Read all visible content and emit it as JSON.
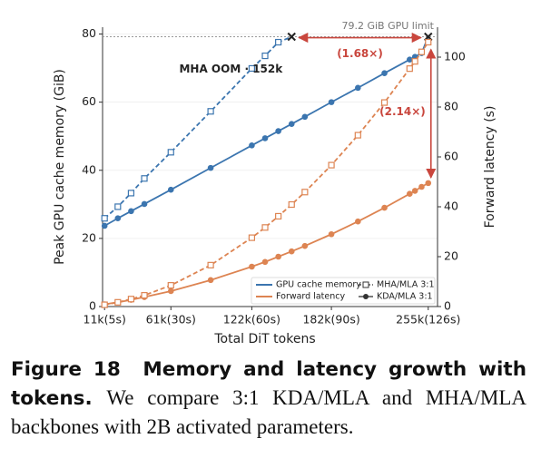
{
  "chart_data": {
    "type": "line",
    "x": [
      11,
      21,
      31,
      41,
      61,
      91,
      122,
      132,
      142,
      152,
      162,
      182,
      202,
      222,
      241,
      245,
      250,
      255
    ],
    "xlim": [
      9.5,
      262
    ],
    "xticks": [
      {
        "value": 11,
        "label": "11k(5s)"
      },
      {
        "value": 61,
        "label": "61k(30s)"
      },
      {
        "value": 122,
        "label": "122k(60s)"
      },
      {
        "value": 182,
        "label": "182k(90s)"
      },
      {
        "value": 255,
        "label": "255k(126s)"
      }
    ],
    "ylim": [
      0,
      82
    ],
    "yticks": [
      0,
      20,
      40,
      60,
      80
    ],
    "y2lim": [
      0,
      112
    ],
    "y2ticks": [
      0,
      20,
      40,
      60,
      80,
      100
    ],
    "xlabel": "Total DiT tokens",
    "ylabel": "Peak GPU cache memory (GiB)",
    "y2label": "Forward latency (s)",
    "grid": true,
    "series": [
      {
        "color": "#3b75af",
        "dashed": false,
        "marker": "circle",
        "last_marker": "x",
        "values": [
          23.7,
          25.9,
          28,
          30.1,
          34.3,
          40.7,
          47.3,
          49.4,
          51.5,
          53.6,
          55.7,
          60,
          64.2,
          68.5,
          72.5,
          73.3,
          74.4,
          79.2
        ]
      },
      {
        "color": "#3b75af",
        "dashed": true,
        "marker": "square",
        "last_marker": "x",
        "values": [
          25.9,
          29.3,
          33.3,
          37.6,
          45.3,
          57.3,
          69.9,
          73.6,
          77.6,
          79.2,
          null,
          null,
          null,
          null,
          null,
          null,
          null,
          null
        ]
      },
      {
        "color": "#dd8452",
        "dashed": false,
        "marker": "circle",
        "axis": "y2",
        "values": [
          0.9,
          1.7,
          2.7,
          3.8,
          6.2,
          10.6,
          16,
          17.9,
          20,
          22.1,
          24.3,
          29,
          34.1,
          39.6,
          45.2,
          46.4,
          48,
          49.5
        ]
      },
      {
        "color": "#dd8452",
        "dashed": true,
        "marker": "square",
        "axis": "y2",
        "values": [
          0.7,
          1.7,
          3,
          4.5,
          8.5,
          16.6,
          27.6,
          31.7,
          36.2,
          40.9,
          45.9,
          56.7,
          68.7,
          81.8,
          95.4,
          98.3,
          102.1,
          106
        ]
      }
    ],
    "limit": {
      "value": 79.2,
      "label": "79.2 GiB GPU limit"
    },
    "annotations": {
      "oom": "MHA OOM · 152k",
      "memory_ratio": "(1.68×)",
      "latency_ratio": "(2.14×)"
    },
    "legend": {
      "loc": "lower right",
      "lines": [
        {
          "label": "GPU cache memory",
          "color": "#3b75af"
        },
        {
          "label": "Forward latency",
          "color": "#dd8452"
        }
      ],
      "markers": [
        {
          "label": "MHA/MLA 3:1",
          "marker": "square",
          "dashed": true
        },
        {
          "label": "KDA/MLA 3:1",
          "marker": "circle",
          "dashed": false
        }
      ]
    },
    "caption": {
      "label": "Figure 18",
      "title": "Memory and latency growth with tokens.",
      "text": "We compare 3:1 KDA/MLA and MHA/MLA backbones with 2B activated parameters."
    }
  }
}
